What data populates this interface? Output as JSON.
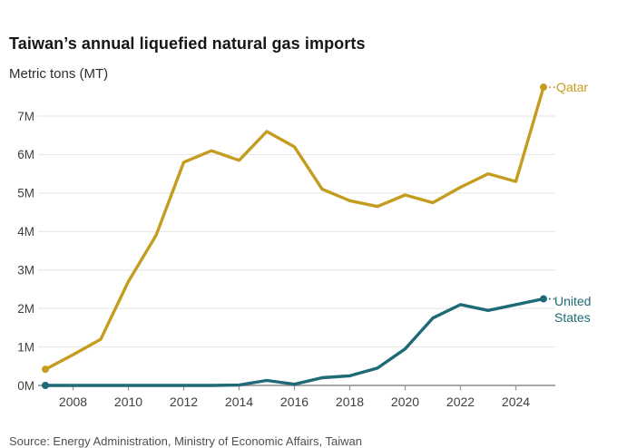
{
  "header": {
    "title": "Taiwan’s annual liquefied natural gas imports",
    "subtitle": "Metric tons (MT)"
  },
  "footer": {
    "source": "Source: Energy Administration, Ministry of Economic Affairs, Taiwan"
  },
  "chart_data": {
    "type": "line",
    "title": "Taiwan’s annual liquefied natural gas imports",
    "ylabel": "Metric tons (MT)",
    "x": [
      2007,
      2008,
      2009,
      2010,
      2011,
      2012,
      2013,
      2014,
      2015,
      2016,
      2017,
      2018,
      2019,
      2020,
      2021,
      2022,
      2023,
      2024,
      2025
    ],
    "series": [
      {
        "name": "Qatar",
        "color": "#c49d20",
        "unit": "M metric tons",
        "values": [
          0.42,
          0.8,
          1.2,
          2.7,
          3.9,
          5.8,
          6.1,
          5.85,
          6.6,
          6.2,
          5.1,
          4.8,
          4.65,
          4.95,
          4.75,
          5.15,
          5.5,
          5.3,
          7.75
        ]
      },
      {
        "name": "United States",
        "color": "#1e6a77",
        "unit": "M metric tons",
        "values": [
          0,
          0,
          0,
          0,
          0,
          0,
          0,
          0.01,
          0.13,
          0.03,
          0.2,
          0.25,
          0.45,
          0.95,
          1.75,
          2.1,
          1.95,
          2.1,
          2.25
        ]
      }
    ],
    "xticks": [
      2008,
      2010,
      2012,
      2014,
      2016,
      2018,
      2020,
      2022,
      2024
    ],
    "yticks": [
      "0M",
      "1M",
      "2M",
      "3M",
      "4M",
      "5M",
      "6M",
      "7M"
    ],
    "ylim": [
      0,
      7.8
    ],
    "grid": true,
    "legend_position": "right-of-line-end"
  }
}
